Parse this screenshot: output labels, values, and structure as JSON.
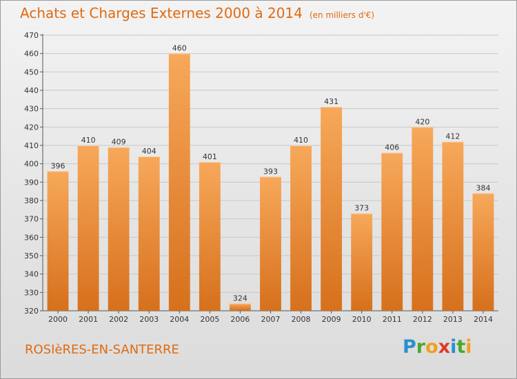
{
  "header": {
    "title": "Achats et Charges Externes 2000 à 2014",
    "subtitle": "(en milliers d'€)"
  },
  "footer": {
    "town": "ROSIèRES-EN-SANTERRE",
    "logo_letters": [
      "P",
      "r",
      "o",
      "x",
      "i",
      "t",
      "i"
    ],
    "logo_colors": [
      "#2a8fd0",
      "#4aaa2a",
      "#f0a020",
      "#e03a2a",
      "#2a8fd0",
      "#4aaa2a",
      "#f0a020"
    ]
  },
  "colors": {
    "bar_light": "#f7a85a",
    "bar_dark": "#d6701c",
    "accent": "#e06a10",
    "grid": "#c8c8c8"
  },
  "chart_data": {
    "type": "bar",
    "title": "Achats et Charges Externes 2000 à 2014",
    "subtitle": "(en milliers d'€)",
    "categories": [
      "2000",
      "2001",
      "2002",
      "2003",
      "2004",
      "2005",
      "2006",
      "2007",
      "2008",
      "2009",
      "2010",
      "2011",
      "2012",
      "2013",
      "2014"
    ],
    "values": [
      396,
      410,
      409,
      404,
      460,
      401,
      324,
      393,
      410,
      431,
      373,
      406,
      420,
      412,
      384
    ],
    "ylim": [
      320,
      470
    ],
    "yticks": [
      320,
      330,
      340,
      350,
      360,
      370,
      380,
      390,
      400,
      410,
      420,
      430,
      440,
      450,
      460,
      470
    ],
    "grid": true,
    "legend": "none"
  }
}
